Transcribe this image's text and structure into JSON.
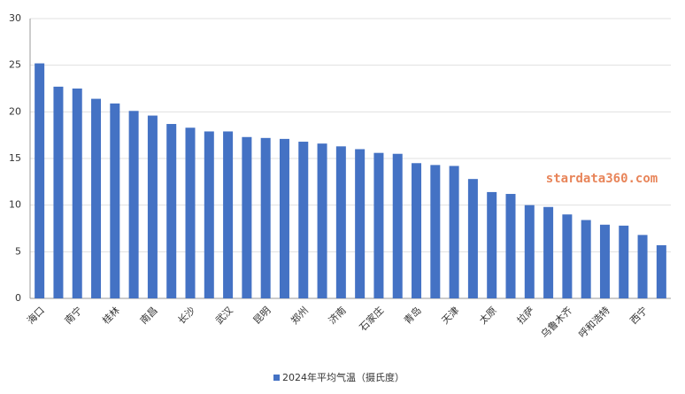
{
  "chart_data": {
    "type": "bar",
    "categories": [
      "海口",
      null,
      "南宁",
      null,
      "桂林",
      null,
      "南昌",
      null,
      "长沙",
      null,
      "武汉",
      null,
      "昆明",
      null,
      "郑州",
      null,
      "济南",
      null,
      "石家庄",
      null,
      "青岛",
      null,
      "天津",
      null,
      "太原",
      null,
      "拉萨",
      null,
      "乌鲁木齐",
      null,
      "呼和浩特",
      null,
      "西宁",
      null
    ],
    "series": [
      {
        "name": "2024年平均气温（摄氏度）",
        "color": "#4472c4",
        "values": [
          25.2,
          22.7,
          22.5,
          21.4,
          20.9,
          20.1,
          19.6,
          18.7,
          18.3,
          17.9,
          17.9,
          17.3,
          17.2,
          17.1,
          16.8,
          16.6,
          16.3,
          16.0,
          15.6,
          15.5,
          14.5,
          14.3,
          14.2,
          12.8,
          11.4,
          11.2,
          10.0,
          9.8,
          9.0,
          8.4,
          7.9,
          7.8,
          6.8,
          5.7
        ]
      }
    ],
    "ylim": [
      0,
      30
    ],
    "yticks": [
      0,
      5,
      10,
      15,
      20,
      25,
      30
    ],
    "grid": true,
    "legend": "bottom",
    "annotations": [
      "stardata360.com"
    ]
  }
}
